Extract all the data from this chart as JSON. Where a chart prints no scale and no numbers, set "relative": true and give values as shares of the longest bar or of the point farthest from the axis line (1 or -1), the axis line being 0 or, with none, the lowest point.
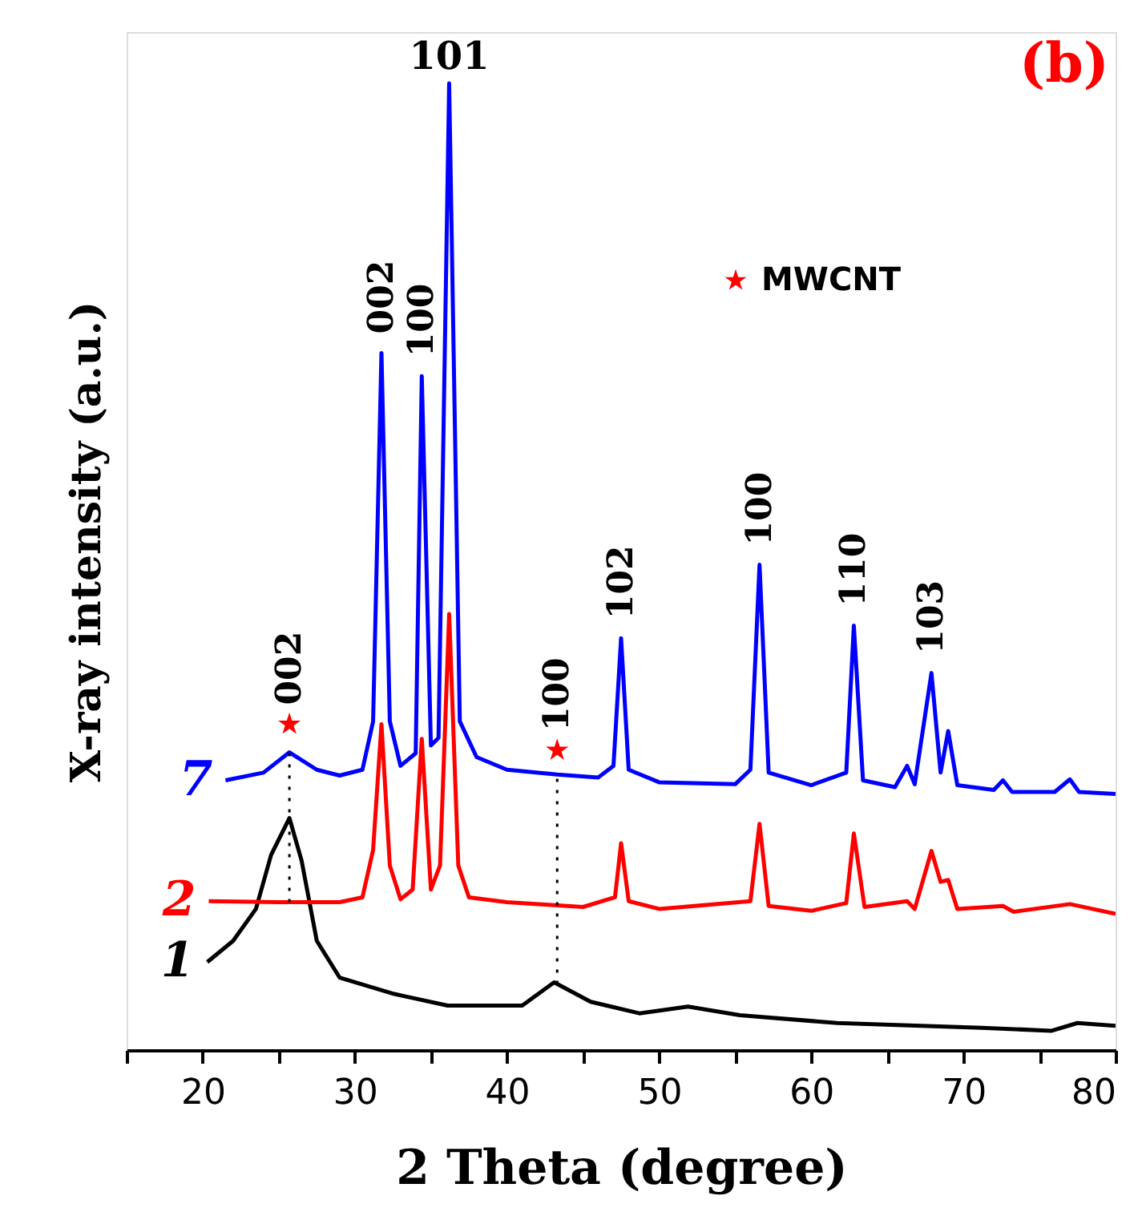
{
  "chart_data": {
    "type": "line",
    "relative": true,
    "xlabel": "2 Theta (degree)",
    "ylabel": "X-ray intensity (a.u.)",
    "xlim": [
      15,
      80
    ],
    "xticks": [
      {
        "value": 15,
        "label": null
      },
      20,
      {
        "value": 25,
        "label": null
      },
      30,
      {
        "value": 35,
        "label": null
      },
      40,
      {
        "value": 45,
        "label": null
      },
      50,
      {
        "value": 55,
        "label": null
      },
      60,
      {
        "value": 65,
        "label": null
      },
      70,
      {
        "value": 75,
        "label": null
      },
      80
    ],
    "grid": false,
    "legend": "top right",
    "line_style": "solid",
    "marker": "none",
    "series": [
      {
        "name": "1",
        "color": "#000000",
        "x": [
          20.3,
          22,
          23.5,
          24.5,
          25.7,
          26.5,
          27.5,
          29,
          32.6,
          36.1,
          41,
          43.1,
          45.5,
          48.7,
          51.9,
          55.3,
          61.7,
          71.2,
          75.8,
          77.5,
          80
        ],
        "values": [
          0.091,
          0.113,
          0.146,
          0.202,
          0.24,
          0.196,
          0.113,
          0.075,
          0.058,
          0.046,
          0.046,
          0.07,
          0.05,
          0.038,
          0.045,
          0.036,
          0.028,
          0.023,
          0.02,
          0.028,
          0.025
        ]
      },
      {
        "name": "2",
        "color": "#ff0000",
        "x": [
          20.4,
          25,
          29,
          30.5,
          31.2,
          31.75,
          32.3,
          33,
          33.8,
          34.4,
          35,
          35.6,
          36.2,
          36.8,
          37.5,
          40,
          45,
          47.1,
          47.5,
          48,
          50,
          56,
          56.6,
          57.2,
          60,
          62.3,
          62.8,
          63.5,
          66.3,
          66.8,
          67.9,
          68.5,
          69,
          69.6,
          72.6,
          73.3,
          77,
          80
        ],
        "values": [
          0.154,
          0.153,
          0.153,
          0.158,
          0.207,
          0.337,
          0.191,
          0.156,
          0.166,
          0.322,
          0.166,
          0.191,
          0.451,
          0.191,
          0.158,
          0.153,
          0.148,
          0.158,
          0.214,
          0.154,
          0.146,
          0.154,
          0.234,
          0.149,
          0.144,
          0.152,
          0.224,
          0.148,
          0.154,
          0.146,
          0.206,
          0.174,
          0.176,
          0.146,
          0.149,
          0.143,
          0.151,
          0.141
        ]
      },
      {
        "name": "7",
        "color": "#0000ff",
        "x": [
          21.5,
          24,
          25.7,
          27.5,
          29,
          30.5,
          31.2,
          31.75,
          32.3,
          33,
          34,
          34.4,
          35,
          35.5,
          36.2,
          36.9,
          38,
          40,
          43.3,
          46,
          47,
          47.5,
          48,
          50,
          55,
          56,
          56.6,
          57.2,
          60,
          62.3,
          62.8,
          63.4,
          65.5,
          66.3,
          66.8,
          67.9,
          68.5,
          69,
          69.6,
          72,
          72.6,
          73.2,
          76,
          77,
          77.6,
          80
        ],
        "values": [
          0.279,
          0.287,
          0.308,
          0.29,
          0.284,
          0.29,
          0.34,
          0.721,
          0.34,
          0.294,
          0.307,
          0.697,
          0.315,
          0.323,
          1,
          0.34,
          0.303,
          0.29,
          0.285,
          0.282,
          0.294,
          0.426,
          0.29,
          0.277,
          0.275,
          0.29,
          0.502,
          0.287,
          0.274,
          0.287,
          0.439,
          0.279,
          0.272,
          0.294,
          0.275,
          0.39,
          0.287,
          0.33,
          0.274,
          0.269,
          0.279,
          0.267,
          0.267,
          0.28,
          0.267,
          0.265
        ]
      },
      {
        "name": "MWCNT",
        "type": "scatter",
        "marker": "star",
        "color": "#ff0000",
        "x": [
          25.7,
          43.3
        ],
        "values": [
          0.337,
          0.31
        ]
      }
    ],
    "ref_lines": [
      {
        "axis": "x",
        "value": 25.7,
        "line_style": "dotted",
        "color": "#000000"
      },
      {
        "axis": "x",
        "value": 43.3,
        "line_style": "dotted",
        "color": "#000000"
      }
    ],
    "annotations": [
      "(b)",
      {
        "text": "101",
        "x": 36.2,
        "y": 1
      },
      {
        "text": "002",
        "x": 31.75,
        "y": 0.721
      },
      {
        "text": "100",
        "x": 34.4,
        "y": 0.697
      },
      {
        "text": "002",
        "x": 25.7,
        "y": 0.337
      },
      {
        "text": "100",
        "x": 43.3,
        "y": 0.31
      },
      {
        "text": "102",
        "x": 47.5,
        "y": 0.426
      },
      {
        "text": "100",
        "x": 56.6,
        "y": 0.502
      },
      {
        "text": "110",
        "x": 62.8,
        "y": 0.439
      },
      {
        "text": "103",
        "x": 67.9,
        "y": 0.39
      }
    ]
  }
}
